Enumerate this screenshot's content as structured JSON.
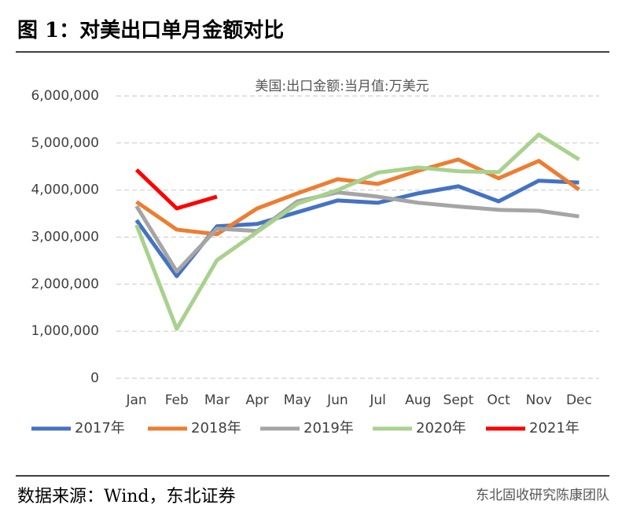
{
  "header": {
    "title": "图 1：对美出口单月金额对比"
  },
  "chart_data": {
    "type": "line",
    "subtitle": "美国:出口金额:当月值:万美元",
    "categories": [
      "Jan",
      "Feb",
      "Mar",
      "Apr",
      "May",
      "Jun",
      "Jul",
      "Aug",
      "Sept",
      "Oct",
      "Nov",
      "Dec"
    ],
    "series": [
      {
        "name": "2017年",
        "color": "#4472c4",
        "values": [
          3360000,
          2170000,
          3230000,
          3280000,
          3530000,
          3780000,
          3730000,
          3930000,
          4080000,
          3760000,
          4200000,
          4160000
        ]
      },
      {
        "name": "2018年",
        "color": "#ed7d31",
        "values": [
          3750000,
          3160000,
          3060000,
          3610000,
          3930000,
          4230000,
          4130000,
          4410000,
          4650000,
          4250000,
          4620000,
          4010000
        ]
      },
      {
        "name": "2019年",
        "color": "#a5a5a5",
        "values": [
          3660000,
          2270000,
          3180000,
          3130000,
          3760000,
          3950000,
          3860000,
          3730000,
          3650000,
          3580000,
          3560000,
          3440000
        ]
      },
      {
        "name": "2020年",
        "color": "#a9d18e",
        "values": [
          3260000,
          1050000,
          2510000,
          3110000,
          3710000,
          4000000,
          4370000,
          4480000,
          4400000,
          4380000,
          5180000,
          4650000
        ]
      },
      {
        "name": "2021年",
        "color": "#ff0000",
        "values": [
          4430000,
          3610000,
          3860000,
          null,
          null,
          null,
          null,
          null,
          null,
          null,
          null,
          null
        ]
      }
    ],
    "ylim": [
      0,
      6000000
    ],
    "yticks": [
      0,
      {
        "value": 1000000,
        "label": "1,000,000"
      },
      {
        "value": 2000000,
        "label": "2,000,000"
      },
      {
        "value": 3000000,
        "label": "3,000,000"
      },
      {
        "value": 4000000,
        "label": "4,000,000"
      },
      {
        "value": 5000000,
        "label": "5,000,000"
      },
      {
        "value": 6000000,
        "label": "6,000,000"
      }
    ],
    "grid": true,
    "legend": "bottom"
  },
  "footer": {
    "source": "数据来源：Wind，东北证券",
    "watermark": "东北固收研究陈康团队"
  }
}
